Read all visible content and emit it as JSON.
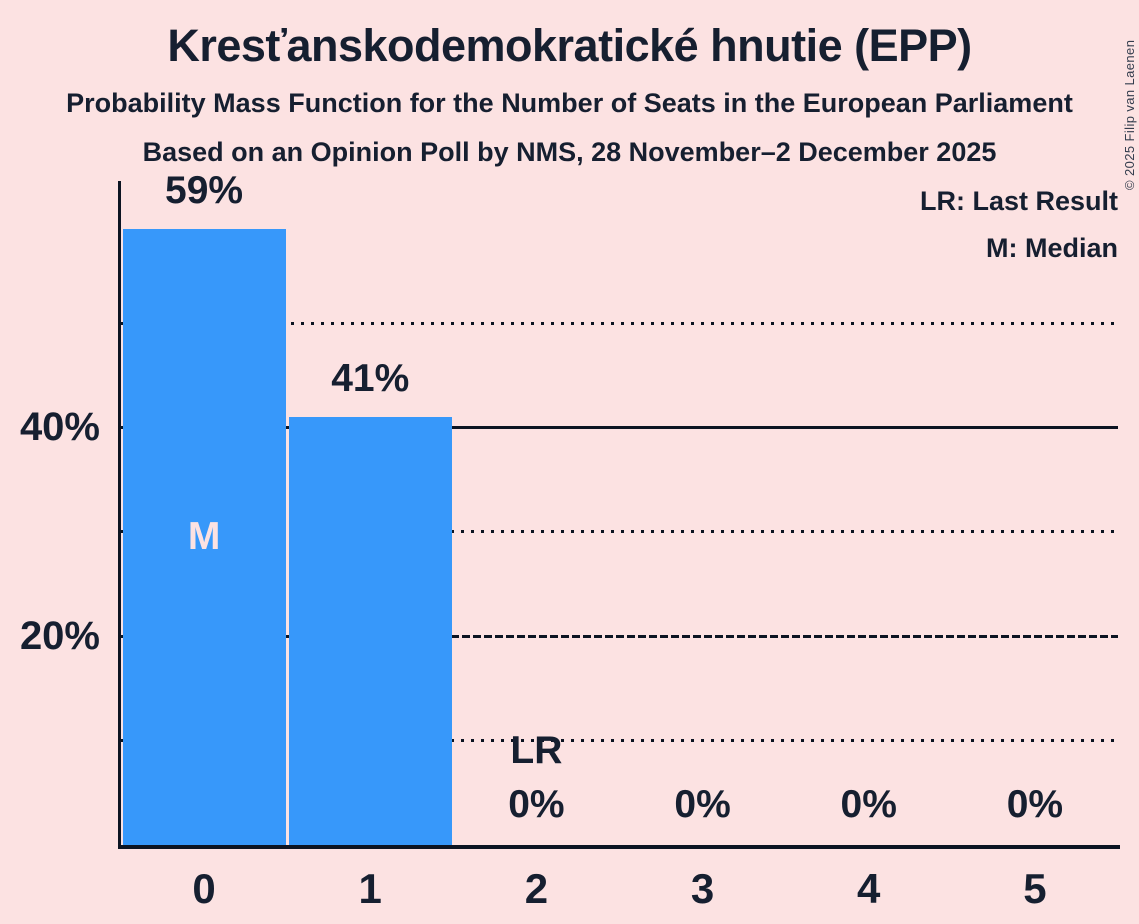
{
  "header": {
    "title": "Kresťanskodemokratické hnutie (EPP)",
    "subtitle": "Probability Mass Function for the Number of Seats in the European Parliament",
    "poll_line": "Based on an Opinion Poll by NMS, 28 November–2 December 2025"
  },
  "legend": {
    "last_result": "LR: Last Result",
    "median": "M: Median"
  },
  "copyright": "© 2025 Filip van Laenen",
  "colors": {
    "background": "#fce2e2",
    "bar": "#3798fa",
    "ink": "#161f30",
    "axis_line": "#0c1422",
    "median_letter": "#fce2e2"
  },
  "chart_data": {
    "type": "bar",
    "title": "Kresťanskodemokratické hnutie (EPP)",
    "categories": [
      "0",
      "1",
      "2",
      "3",
      "4",
      "5"
    ],
    "values": [
      59,
      41,
      0,
      0,
      0,
      0
    ],
    "bar_value_labels": [
      "59%",
      "41%",
      "0%",
      "0%",
      "0%",
      "0%"
    ],
    "median_marker": {
      "bar_index": 0,
      "text": "M"
    },
    "last_result_marker": {
      "bar_index": 2,
      "text": "LR"
    },
    "y_axis": {
      "ylim": [
        0,
        63.6
      ],
      "gridlines": [
        {
          "percent": 10,
          "style": "dotted",
          "label": ""
        },
        {
          "percent": 20,
          "style": "dashed",
          "label": "20%"
        },
        {
          "percent": 30,
          "style": "dotted",
          "label": ""
        },
        {
          "percent": 40,
          "style": "solid",
          "label": "40%"
        },
        {
          "percent": 50,
          "style": "dotted",
          "label": ""
        }
      ]
    },
    "grid": true,
    "legend_position": "top-right"
  }
}
